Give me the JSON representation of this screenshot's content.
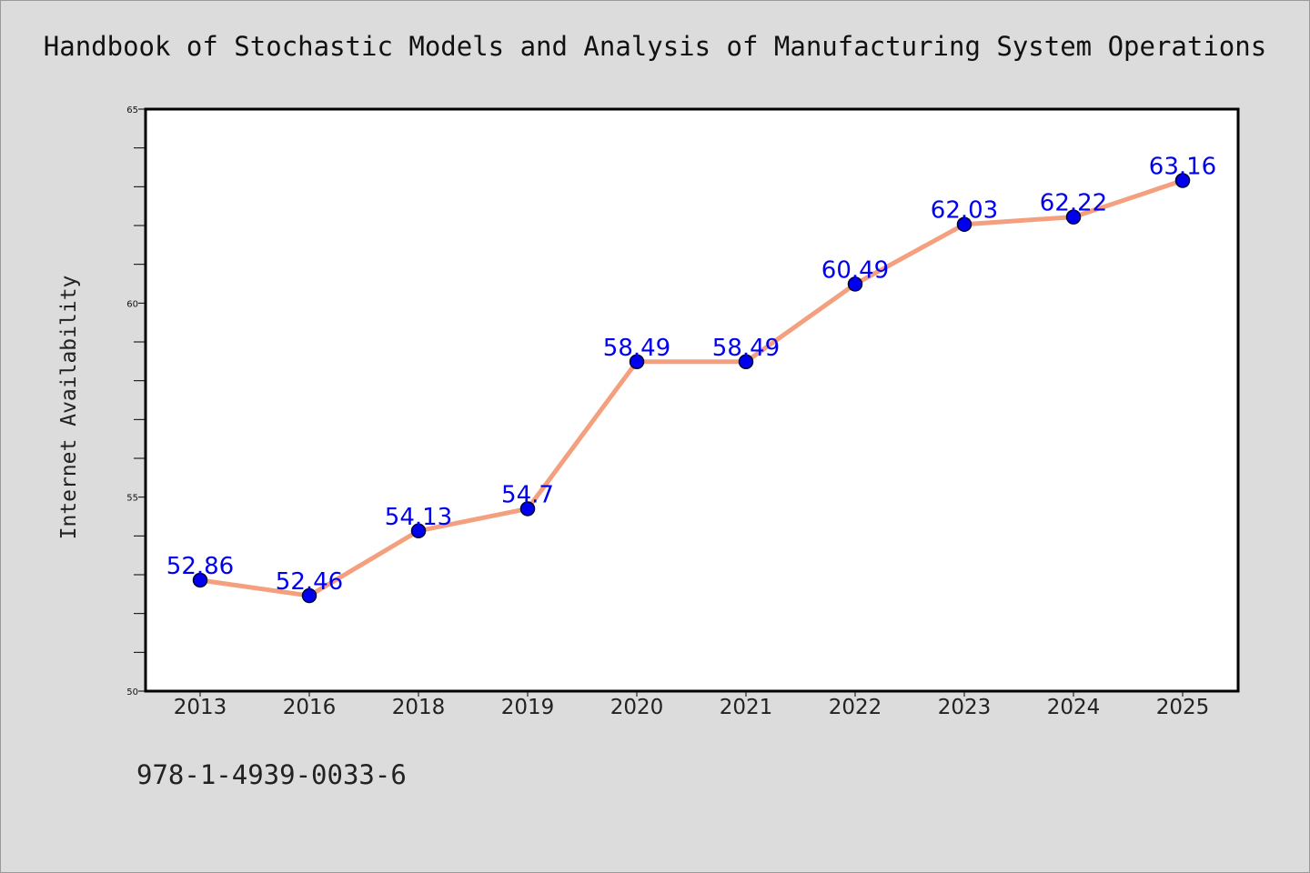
{
  "page": {
    "title": "Handbook of Stochastic Models and Analysis of Manufacturing System Operations",
    "footnote": "978-1-4939-0033-6"
  },
  "chart_data": {
    "type": "line",
    "title": "Handbook of Stochastic Models and Analysis of Manufacturing System Operations",
    "xlabel": "",
    "ylabel": "Internet Availability",
    "categories": [
      "2013",
      "2016",
      "2018",
      "2019",
      "2020",
      "2021",
      "2022",
      "2023",
      "2024",
      "2025"
    ],
    "series": [
      {
        "values": [
          52.86,
          52.46,
          54.13,
          54.7,
          58.49,
          58.49,
          60.49,
          62.03,
          62.22,
          63.16
        ],
        "data_labels": [
          "52.86",
          "52.46",
          "54.13",
          "54.7",
          "58.49",
          "58.49",
          "60.49",
          "62.03",
          "62.22",
          "63.16"
        ]
      }
    ],
    "ylim": [
      50,
      65
    ],
    "yticks": [
      50,
      55,
      60,
      65
    ],
    "ytick_labels": [
      "50",
      "55",
      "60",
      "65"
    ],
    "grid": false,
    "colors": {
      "line": "#f4a07e",
      "marker": "#0000ee",
      "marker_edge": "#000033",
      "label": "#0000ee",
      "plot_background": "#ffffff",
      "page_background": "#dcdcdc"
    }
  }
}
